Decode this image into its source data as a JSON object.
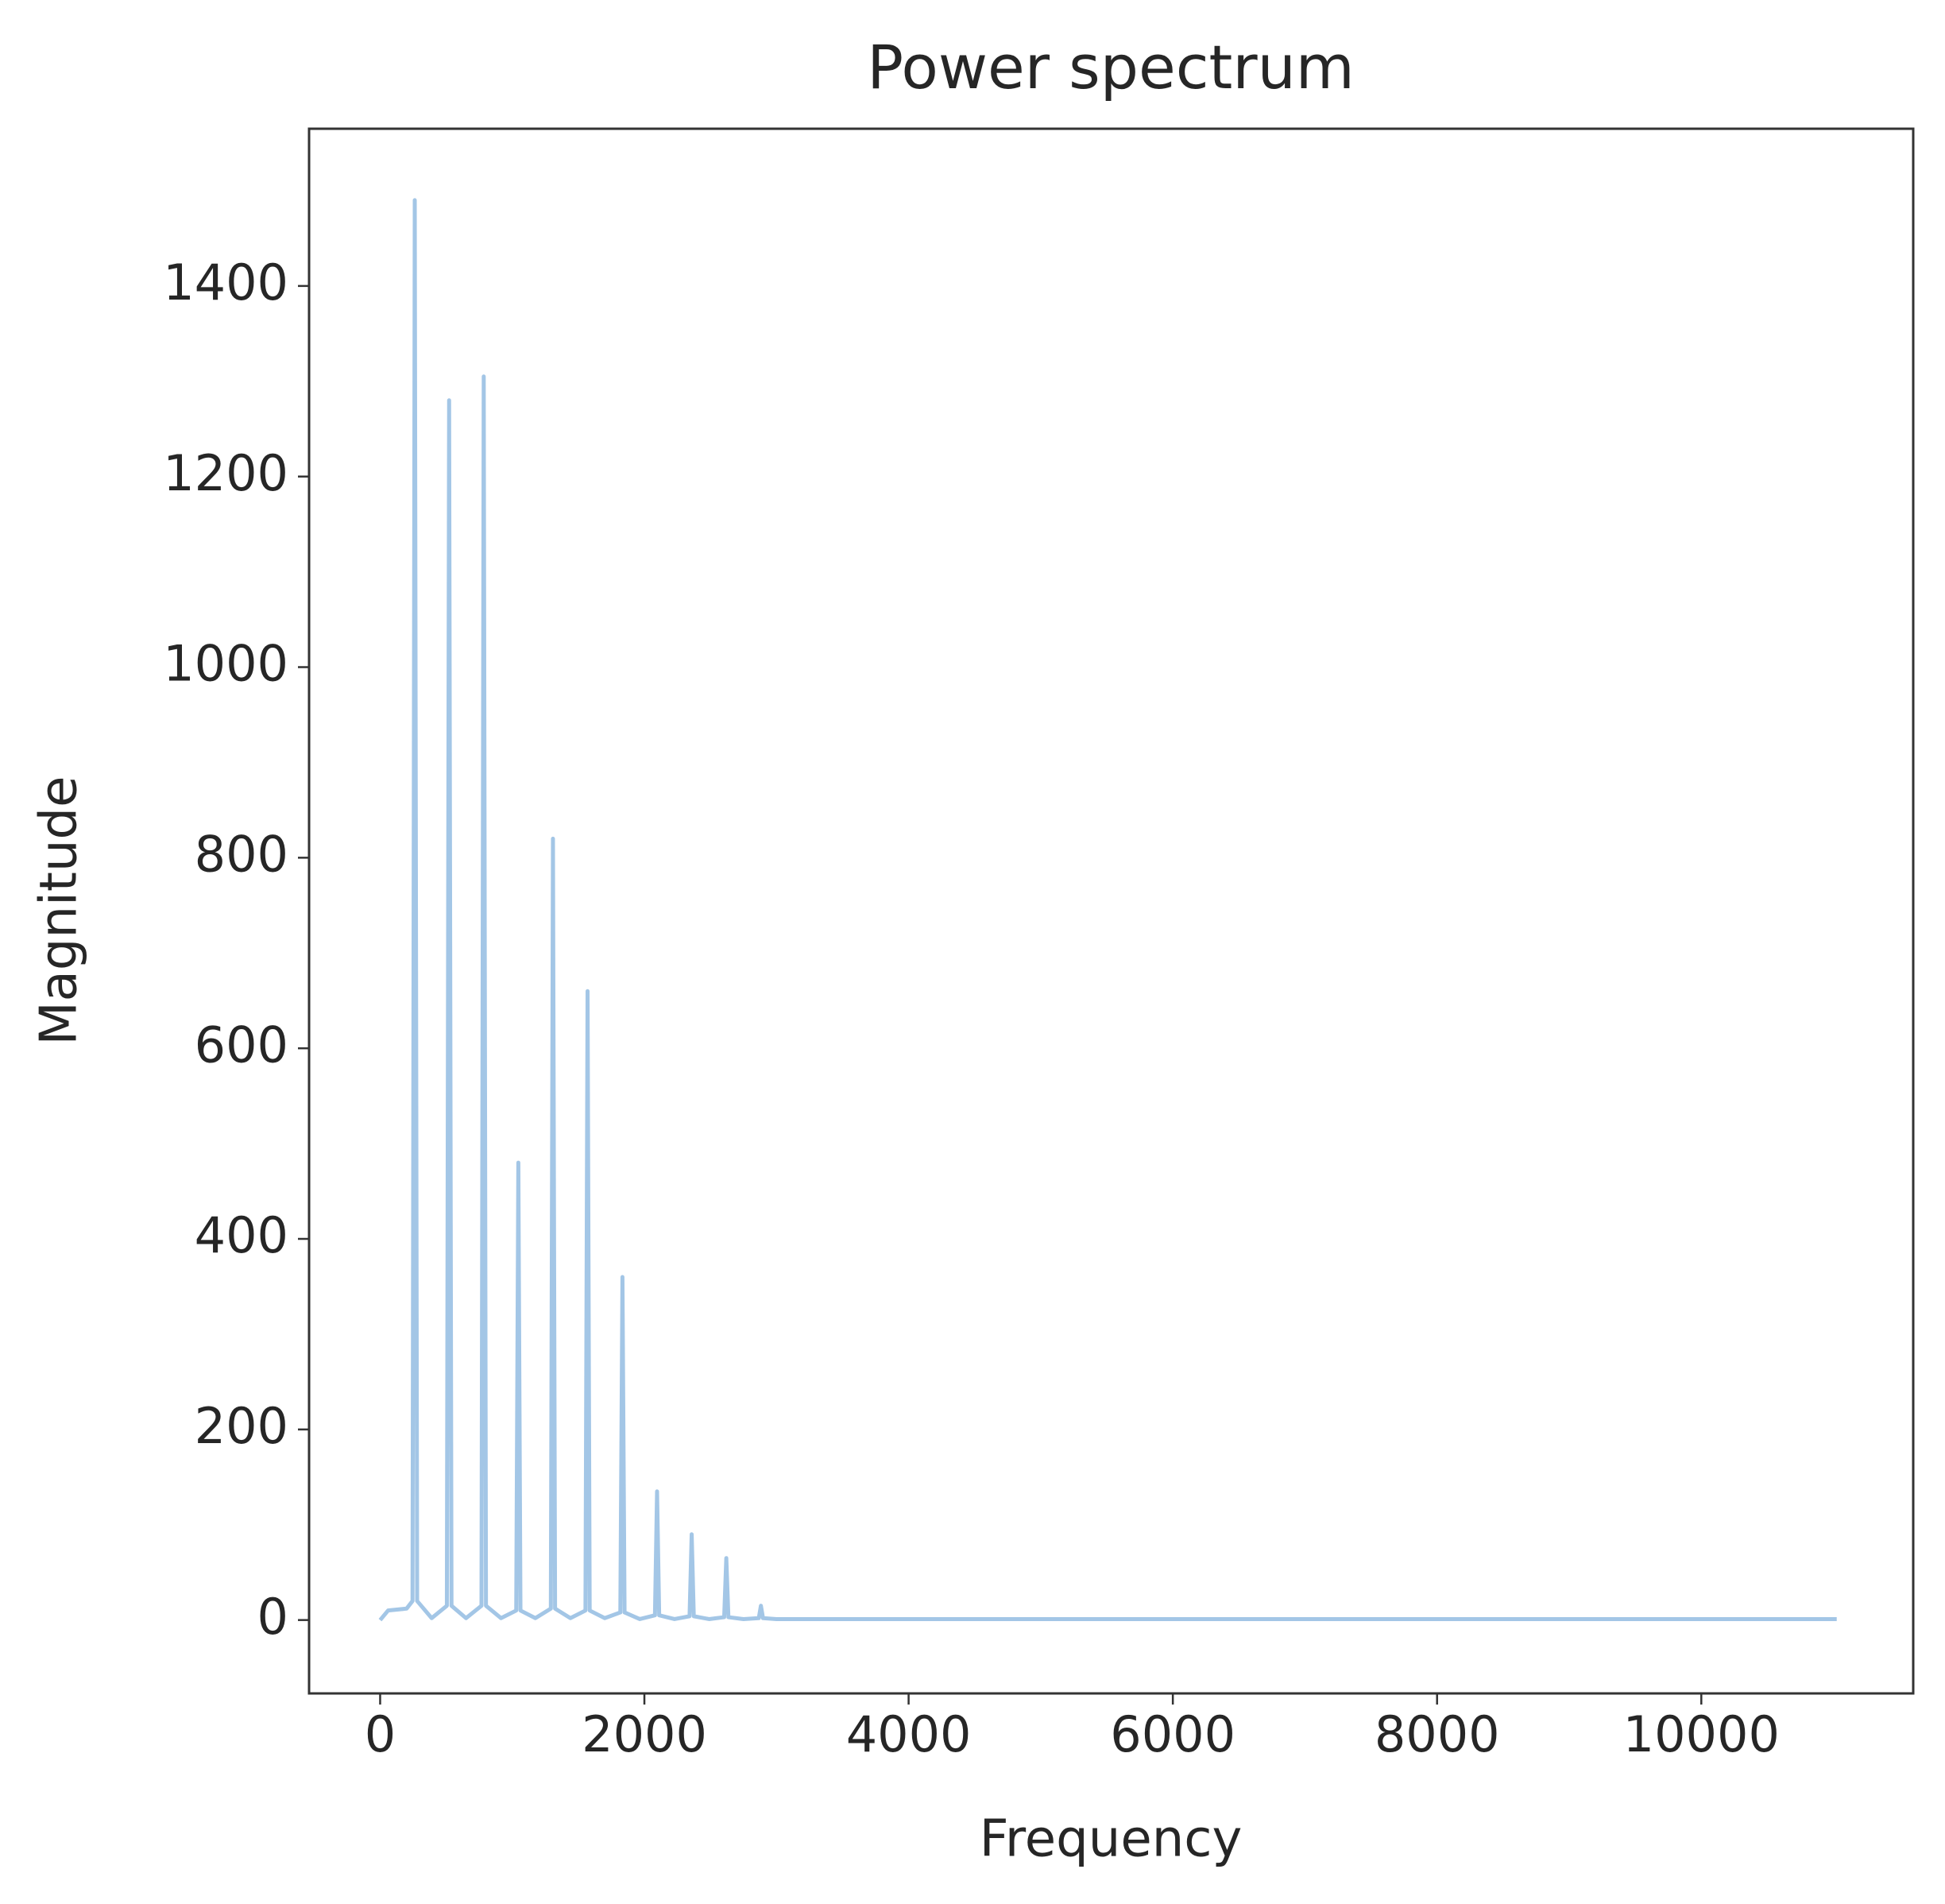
{
  "chart_data": {
    "type": "line",
    "title": "Power spectrum",
    "x_label": "Frequency",
    "y_label": "Magnitude",
    "x": [
      0,
      60,
      200,
      245,
      262,
      280,
      390,
      505,
      522,
      540,
      650,
      767,
      784,
      801,
      915,
      1030,
      1046,
      1062,
      1175,
      1292,
      1308,
      1324,
      1440,
      1554,
      1570,
      1586,
      1700,
      1818,
      1834,
      1850,
      1965,
      2080,
      2096,
      2112,
      2228,
      2342,
      2358,
      2374,
      2490,
      2604,
      2620,
      2636,
      2750,
      2866,
      2882,
      2898,
      3000,
      11025
    ],
    "series": [
      {
        "color": "#a3c6e6",
        "values": [
          0,
          10,
          12,
          20,
          1490,
          20,
          2,
          15,
          1280,
          15,
          2,
          15,
          1305,
          15,
          2,
          10,
          480,
          10,
          2,
          12,
          820,
          12,
          2,
          10,
          660,
          10,
          2,
          8,
          360,
          8,
          1,
          5,
          135,
          5,
          1,
          4,
          90,
          4,
          1,
          3,
          65,
          3,
          1,
          2,
          15,
          2,
          1,
          1
        ]
      }
    ],
    "xlim": [
      -538,
      11604
    ],
    "ylim": [
      -77,
      1565
    ],
    "xticks": [
      0,
      2000,
      4000,
      6000,
      8000,
      10000
    ],
    "yticks": [
      0,
      200,
      400,
      600,
      800,
      1000,
      1200,
      1400
    ],
    "grid": false
  }
}
